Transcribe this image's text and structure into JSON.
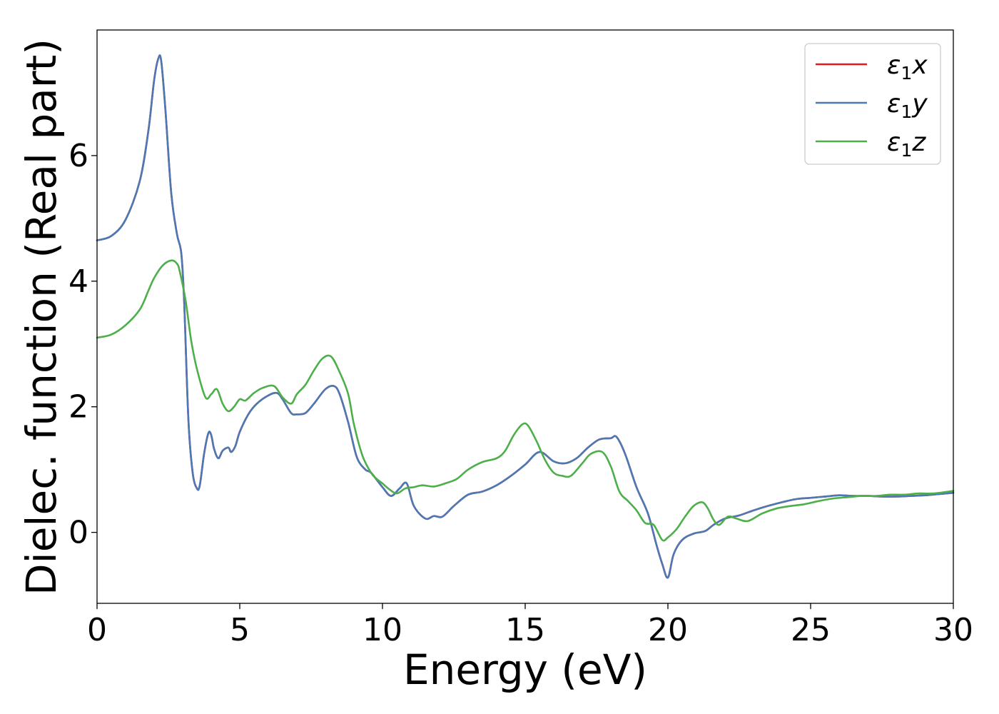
{
  "chart_data": {
    "type": "line",
    "title": "",
    "xlabel": "Energy (eV)",
    "ylabel": "Dielec. function (Real part)",
    "xlim": [
      0,
      30
    ],
    "ylim": [
      -1.13,
      8.0
    ],
    "xticks": [
      0,
      5,
      10,
      15,
      20,
      25,
      30
    ],
    "yticks": [
      0,
      2,
      4,
      6
    ],
    "grid": false,
    "legend_position": "top-right",
    "series": [
      {
        "name": "ε₁x",
        "legend_main": "ε",
        "legend_sub": "1",
        "legend_tail": "x",
        "color": "#e41a1c",
        "x": [
          0,
          0.5,
          1.0,
          1.5,
          1.8,
          2.0,
          2.15,
          2.25,
          2.4,
          2.6,
          2.8,
          2.95,
          3.05,
          3.2,
          3.35,
          3.5,
          3.6,
          3.75,
          3.9,
          4.0,
          4.1,
          4.25,
          4.4,
          4.6,
          4.7,
          4.85,
          5.0,
          5.3,
          5.6,
          6.0,
          6.3,
          6.5,
          6.8,
          7.0,
          7.3,
          7.6,
          8.0,
          8.3,
          8.5,
          8.8,
          9.1,
          9.4,
          9.6,
          10.0,
          10.3,
          10.6,
          10.85,
          11.1,
          11.5,
          11.8,
          12.1,
          12.5,
          13.0,
          13.5,
          14.0,
          14.5,
          15.0,
          15.5,
          16.0,
          16.4,
          16.8,
          17.2,
          17.6,
          18.0,
          18.2,
          18.5,
          18.9,
          19.3,
          19.6,
          19.8,
          20.0,
          20.2,
          20.5,
          20.9,
          21.3,
          21.6,
          22.0,
          22.5,
          23.0,
          23.5,
          24.0,
          24.5,
          25.0,
          25.5,
          26.0,
          26.5,
          27.0,
          27.5,
          28.0,
          28.5,
          29.0,
          29.5,
          30.0
        ],
        "values": [
          4.65,
          4.72,
          4.98,
          5.6,
          6.4,
          7.2,
          7.55,
          7.5,
          6.7,
          5.4,
          4.75,
          4.45,
          3.7,
          1.8,
          0.95,
          0.7,
          0.75,
          1.25,
          1.58,
          1.55,
          1.33,
          1.18,
          1.3,
          1.35,
          1.28,
          1.38,
          1.6,
          1.88,
          2.05,
          2.18,
          2.22,
          2.12,
          1.9,
          1.88,
          1.9,
          2.05,
          2.28,
          2.33,
          2.2,
          1.75,
          1.2,
          1.0,
          0.95,
          0.72,
          0.58,
          0.7,
          0.78,
          0.42,
          0.22,
          0.26,
          0.25,
          0.42,
          0.6,
          0.65,
          0.75,
          0.9,
          1.08,
          1.28,
          1.13,
          1.1,
          1.18,
          1.35,
          1.48,
          1.5,
          1.52,
          1.25,
          0.72,
          0.3,
          -0.2,
          -0.5,
          -0.72,
          -0.35,
          -0.12,
          -0.02,
          0.02,
          0.12,
          0.22,
          0.27,
          0.35,
          0.42,
          0.48,
          0.53,
          0.55,
          0.57,
          0.59,
          0.58,
          0.58,
          0.57,
          0.57,
          0.58,
          0.59,
          0.61,
          0.63
        ]
      },
      {
        "name": "ε₁y",
        "legend_main": "ε",
        "legend_sub": "1",
        "legend_tail": "y",
        "color": "#4a79b5",
        "x": [
          0,
          0.5,
          1.0,
          1.5,
          1.8,
          2.0,
          2.15,
          2.25,
          2.4,
          2.6,
          2.8,
          2.95,
          3.05,
          3.2,
          3.35,
          3.5,
          3.6,
          3.75,
          3.9,
          4.0,
          4.1,
          4.25,
          4.4,
          4.6,
          4.7,
          4.85,
          5.0,
          5.3,
          5.6,
          6.0,
          6.3,
          6.5,
          6.8,
          7.0,
          7.3,
          7.6,
          8.0,
          8.3,
          8.5,
          8.8,
          9.1,
          9.4,
          9.6,
          10.0,
          10.3,
          10.6,
          10.85,
          11.1,
          11.5,
          11.8,
          12.1,
          12.5,
          13.0,
          13.5,
          14.0,
          14.5,
          15.0,
          15.5,
          16.0,
          16.4,
          16.8,
          17.2,
          17.6,
          18.0,
          18.2,
          18.5,
          18.9,
          19.3,
          19.6,
          19.8,
          20.0,
          20.2,
          20.5,
          20.9,
          21.3,
          21.6,
          22.0,
          22.5,
          23.0,
          23.5,
          24.0,
          24.5,
          25.0,
          25.5,
          26.0,
          26.5,
          27.0,
          27.5,
          28.0,
          28.5,
          29.0,
          29.5,
          30.0
        ],
        "values": [
          4.65,
          4.72,
          4.98,
          5.6,
          6.4,
          7.2,
          7.55,
          7.5,
          6.7,
          5.4,
          4.75,
          4.45,
          3.7,
          1.8,
          0.95,
          0.7,
          0.75,
          1.25,
          1.58,
          1.55,
          1.33,
          1.18,
          1.3,
          1.35,
          1.28,
          1.38,
          1.6,
          1.88,
          2.05,
          2.18,
          2.22,
          2.12,
          1.9,
          1.88,
          1.9,
          2.05,
          2.28,
          2.33,
          2.2,
          1.75,
          1.2,
          1.0,
          0.95,
          0.72,
          0.58,
          0.7,
          0.78,
          0.42,
          0.22,
          0.26,
          0.25,
          0.42,
          0.6,
          0.65,
          0.75,
          0.9,
          1.08,
          1.28,
          1.13,
          1.1,
          1.18,
          1.35,
          1.48,
          1.5,
          1.52,
          1.25,
          0.72,
          0.3,
          -0.2,
          -0.5,
          -0.72,
          -0.35,
          -0.12,
          -0.02,
          0.02,
          0.12,
          0.22,
          0.27,
          0.35,
          0.42,
          0.48,
          0.53,
          0.55,
          0.57,
          0.59,
          0.58,
          0.58,
          0.57,
          0.57,
          0.58,
          0.59,
          0.61,
          0.63
        ]
      },
      {
        "name": "ε₁z",
        "legend_main": "ε",
        "legend_sub": "1",
        "legend_tail": "z",
        "color": "#4daf4a",
        "x": [
          0,
          0.5,
          1.0,
          1.5,
          1.8,
          2.0,
          2.3,
          2.6,
          2.8,
          2.9,
          3.1,
          3.3,
          3.5,
          3.8,
          4.0,
          4.2,
          4.4,
          4.6,
          4.8,
          5.0,
          5.2,
          5.5,
          5.8,
          6.2,
          6.5,
          6.8,
          7.0,
          7.3,
          7.6,
          7.9,
          8.2,
          8.5,
          8.8,
          9.0,
          9.3,
          9.6,
          9.8,
          10.0,
          10.2,
          10.5,
          10.8,
          11.1,
          11.4,
          11.8,
          12.2,
          12.6,
          13.0,
          13.5,
          14.0,
          14.3,
          14.6,
          14.9,
          15.1,
          15.4,
          15.7,
          16.0,
          16.3,
          16.6,
          17.0,
          17.3,
          17.7,
          18.0,
          18.3,
          18.6,
          18.9,
          19.2,
          19.5,
          19.8,
          20.0,
          20.3,
          20.6,
          20.9,
          21.2,
          21.4,
          21.6,
          21.8,
          22.1,
          22.4,
          22.8,
          23.3,
          23.8,
          24.3,
          24.8,
          25.3,
          25.8,
          26.3,
          26.8,
          27.3,
          27.8,
          28.3,
          28.8,
          29.3,
          30.0
        ],
        "values": [
          3.1,
          3.15,
          3.3,
          3.55,
          3.85,
          4.05,
          4.25,
          4.33,
          4.28,
          4.15,
          3.7,
          3.05,
          2.6,
          2.15,
          2.2,
          2.28,
          2.05,
          1.93,
          2.0,
          2.12,
          2.1,
          2.22,
          2.3,
          2.33,
          2.15,
          2.05,
          2.2,
          2.35,
          2.58,
          2.77,
          2.8,
          2.55,
          2.2,
          1.72,
          1.22,
          0.95,
          0.85,
          0.78,
          0.7,
          0.62,
          0.7,
          0.72,
          0.75,
          0.73,
          0.78,
          0.85,
          1.0,
          1.12,
          1.18,
          1.3,
          1.55,
          1.72,
          1.7,
          1.45,
          1.15,
          0.95,
          0.9,
          0.9,
          1.1,
          1.25,
          1.28,
          1.05,
          0.65,
          0.5,
          0.35,
          0.15,
          0.12,
          -0.12,
          -0.08,
          0.05,
          0.25,
          0.42,
          0.48,
          0.38,
          0.2,
          0.12,
          0.25,
          0.22,
          0.18,
          0.3,
          0.38,
          0.42,
          0.45,
          0.5,
          0.54,
          0.56,
          0.58,
          0.58,
          0.6,
          0.6,
          0.62,
          0.62,
          0.66
        ]
      }
    ]
  }
}
